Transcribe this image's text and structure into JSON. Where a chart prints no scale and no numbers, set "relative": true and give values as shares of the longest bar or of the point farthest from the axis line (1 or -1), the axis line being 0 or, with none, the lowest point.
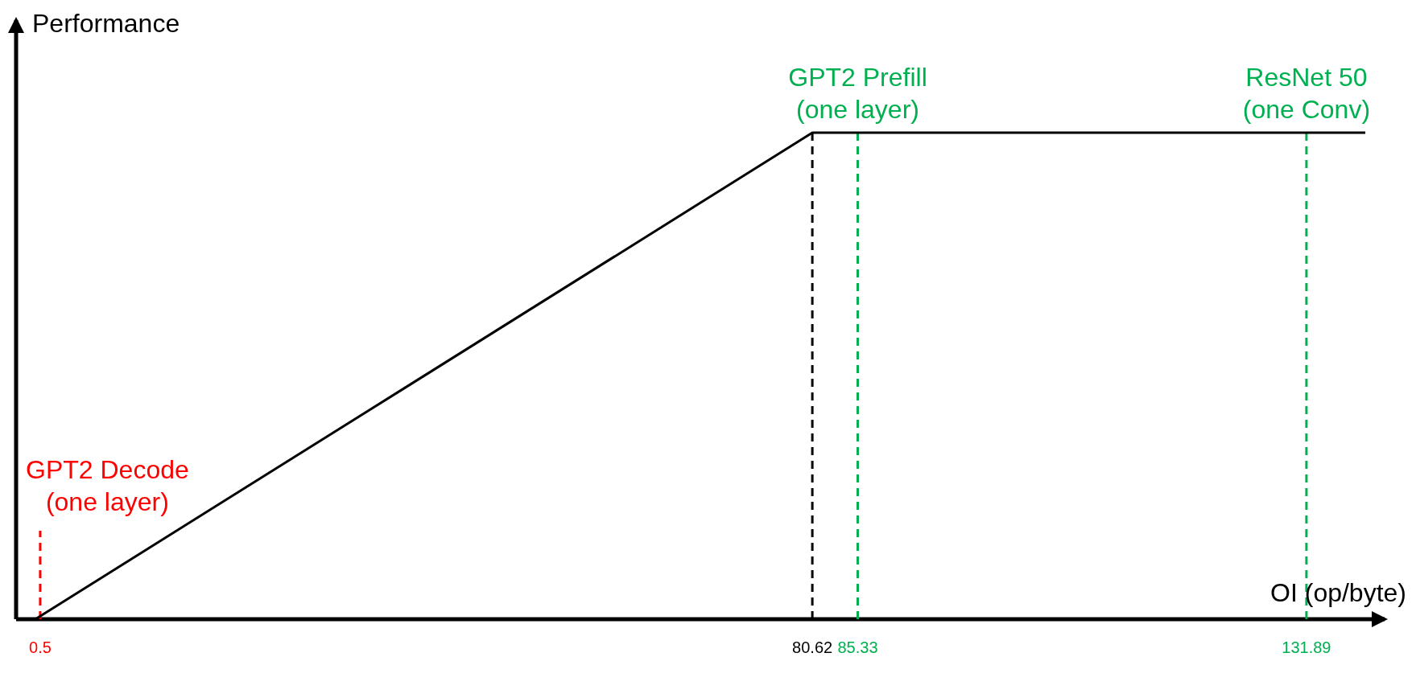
{
  "chart_data": {
    "type": "line",
    "relative": true,
    "xlabel": "OI (op/byte)",
    "ylabel": "Performance",
    "x": [
      0,
      80.62,
      138
    ],
    "series": [
      {
        "color": "#000000",
        "values": [
          0,
          1,
          1
        ]
      }
    ],
    "xlim": [
      -2,
      140
    ],
    "xticks": [
      0.5,
      80.62,
      85.33,
      131.89
    ],
    "ref_lines": [
      {
        "axis": "x",
        "value": 0.5,
        "label": "GPT2 Decode\n(one layer)",
        "color": "#ff0000",
        "line_style": "dashed"
      },
      {
        "axis": "x",
        "value": 80.62,
        "label": null,
        "color": "#000000",
        "line_style": "dashed"
      },
      {
        "axis": "x",
        "value": 85.33,
        "label": "GPT2 Prefill\n(one layer)",
        "color": "#00b050",
        "line_style": "dashed"
      },
      {
        "axis": "x",
        "value": 131.89,
        "label": "ResNet 50\n(one Conv)",
        "color": "#00b050",
        "line_style": "dashed"
      }
    ],
    "marker": "none",
    "line_style": "solid"
  }
}
